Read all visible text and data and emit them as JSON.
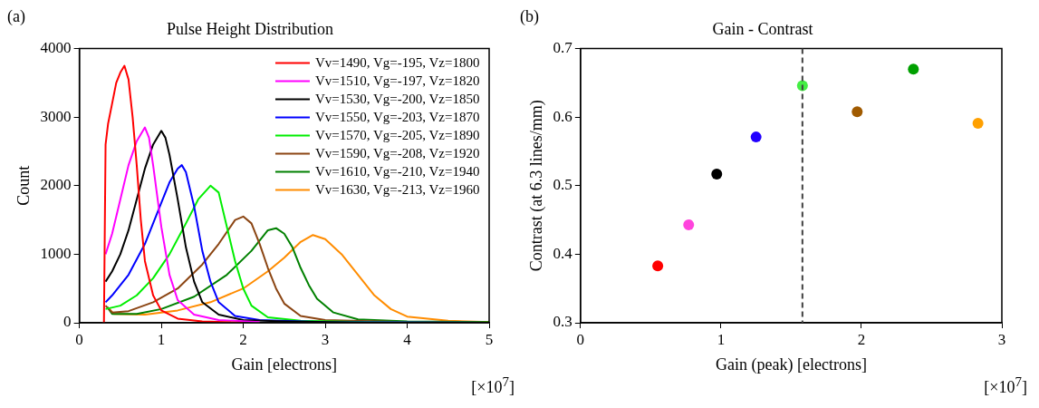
{
  "chart_data": [
    {
      "type": "line",
      "title": "Pulse Height Distribution",
      "xlabel": "Gain [electrons]",
      "ylabel": "Count",
      "annotations": [
        "(a)",
        "[×10$^{7}$]"
      ],
      "xlim": [
        0,
        5
      ],
      "xticks": [
        0,
        1,
        2,
        3,
        4,
        5
      ],
      "ylim": [
        0,
        4000
      ],
      "yticks": [
        0,
        1000,
        2000,
        3000,
        4000
      ],
      "grid": false,
      "legend": "top right",
      "marker": "none",
      "line_style": "solid",
      "series": [
        {
          "name": "Vv=1490, Vg=-195, Vz=1800",
          "color": "#ff0000",
          "x": [
            0.28,
            0.3,
            0.32,
            0.35,
            0.4,
            0.45,
            0.5,
            0.55,
            0.6,
            0.65,
            0.7,
            0.75,
            0.8,
            0.9,
            1.0,
            1.2,
            1.5,
            2
          ],
          "values": [
            0,
            0,
            2600,
            2900,
            3200,
            3500,
            3650,
            3750,
            3550,
            3000,
            2300,
            1500,
            900,
            400,
            180,
            60,
            20,
            0
          ]
        },
        {
          "name": "Vv=1510, Vg=-197, Vz=1820",
          "color": "#ff00ff",
          "x": [
            0.32,
            0.4,
            0.5,
            0.6,
            0.7,
            0.8,
            0.85,
            0.9,
            1.0,
            1.1,
            1.2,
            1.4,
            1.7,
            2.2
          ],
          "values": [
            1000,
            1300,
            1800,
            2300,
            2650,
            2850,
            2700,
            2300,
            1400,
            700,
            330,
            120,
            40,
            10
          ]
        },
        {
          "name": "Vv=1530, Vg=-200, Vz=1850",
          "color": "#000000",
          "x": [
            0.32,
            0.4,
            0.5,
            0.6,
            0.7,
            0.8,
            0.9,
            1.0,
            1.05,
            1.1,
            1.2,
            1.3,
            1.4,
            1.5,
            1.7,
            2,
            2.5,
            3.5,
            5
          ],
          "values": [
            600,
            750,
            1000,
            1350,
            1800,
            2250,
            2600,
            2800,
            2700,
            2450,
            1800,
            1100,
            600,
            300,
            120,
            40,
            20,
            0,
            0
          ]
        },
        {
          "name": "Vv=1550, Vg=-203, Vz=1870",
          "color": "#0000ff",
          "x": [
            0.32,
            0.4,
            0.6,
            0.8,
            0.9,
            1.0,
            1.1,
            1.2,
            1.25,
            1.3,
            1.4,
            1.5,
            1.6,
            1.7,
            1.9,
            2.2,
            3,
            5
          ],
          "values": [
            300,
            400,
            700,
            1150,
            1450,
            1750,
            2050,
            2250,
            2300,
            2200,
            1700,
            1050,
            600,
            300,
            100,
            40,
            10,
            0
          ]
        },
        {
          "name": "Vv=1570, Vg=-205, Vz=1890",
          "color": "#00ee00",
          "x": [
            0.32,
            0.5,
            0.7,
            0.9,
            1.1,
            1.3,
            1.45,
            1.6,
            1.7,
            1.8,
            1.9,
            2.0,
            2.1,
            2.3,
            2.7,
            3.5,
            5
          ],
          "values": [
            200,
            250,
            400,
            650,
            1000,
            1450,
            1800,
            2000,
            1900,
            1400,
            900,
            500,
            250,
            80,
            30,
            10,
            0
          ]
        },
        {
          "name": "Vv=1590, Vg=-208, Vz=1920",
          "color": "#8b4513",
          "x": [
            0.32,
            0.4,
            0.6,
            0.9,
            1.2,
            1.5,
            1.7,
            1.9,
            2.0,
            2.1,
            2.2,
            2.3,
            2.4,
            2.5,
            2.7,
            3,
            4,
            5
          ],
          "values": [
            250,
            150,
            170,
            300,
            500,
            850,
            1150,
            1500,
            1550,
            1450,
            1150,
            800,
            500,
            280,
            100,
            40,
            10,
            0
          ]
        },
        {
          "name": "Vv=1610, Vg=-210, Vz=1940",
          "color": "#008000",
          "x": [
            0.34,
            0.4,
            0.7,
            1.0,
            1.4,
            1.8,
            2.1,
            2.3,
            2.4,
            2.5,
            2.6,
            2.7,
            2.8,
            2.9,
            3.1,
            3.4,
            4,
            5
          ],
          "values": [
            230,
            130,
            130,
            200,
            380,
            700,
            1050,
            1350,
            1380,
            1300,
            1100,
            800,
            550,
            350,
            150,
            50,
            20,
            10
          ]
        },
        {
          "name": "Vv=1630, Vg=-213, Vz=1960",
          "color": "#ff8c00",
          "x": [
            0.36,
            0.42,
            0.8,
            1.2,
            1.6,
            2.0,
            2.3,
            2.5,
            2.7,
            2.85,
            3.0,
            3.2,
            3.4,
            3.6,
            3.8,
            4.0,
            4.5,
            5
          ],
          "values": [
            210,
            130,
            120,
            180,
            300,
            500,
            750,
            950,
            1180,
            1280,
            1220,
            1000,
            700,
            400,
            200,
            90,
            30,
            10
          ]
        }
      ]
    },
    {
      "type": "scatter",
      "title": "Gain - Contrast",
      "xlabel": "Gain (peak) [electrons]",
      "ylabel": "Contrast (at 6.3 lines/mm)",
      "annotations": [
        "(b)",
        "[×10$^{7}$]"
      ],
      "xlim": [
        0,
        3
      ],
      "xticks": [
        0,
        1,
        2,
        3
      ],
      "ylim": [
        0.3,
        0.7
      ],
      "yticks": [
        0.3,
        0.4,
        0.5,
        0.6,
        0.7
      ],
      "grid": false,
      "legend": false,
      "marker": "circle",
      "x": [
        0.55,
        0.77,
        0.97,
        1.25,
        1.58,
        1.97,
        2.37,
        2.83
      ],
      "values": [
        0.383,
        0.443,
        0.517,
        0.571,
        0.646,
        0.608,
        0.67,
        0.591
      ],
      "colors": [
        "#ff0000",
        "#ff44dd",
        "#000000",
        "#2200ff",
        "#44ee44",
        "#a05a00",
        "#00a000",
        "#ffa000"
      ],
      "ref_lines": [
        {
          "axis": "x",
          "value": 1.58,
          "color": "#404040",
          "line_style": "dashed"
        }
      ]
    }
  ]
}
